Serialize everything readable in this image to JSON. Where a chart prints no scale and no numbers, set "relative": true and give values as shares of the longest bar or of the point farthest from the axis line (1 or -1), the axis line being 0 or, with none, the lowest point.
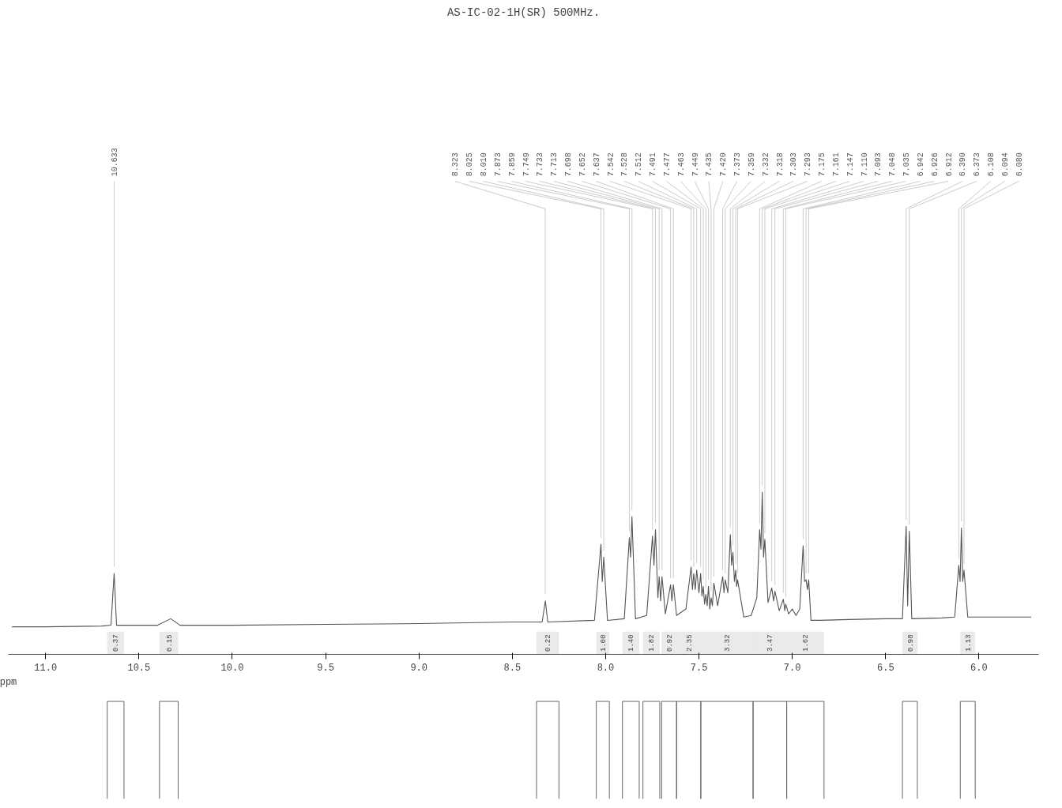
{
  "chart_data": {
    "type": "line",
    "relative": true,
    "title": "AS-IC-02-1H(SR) 500MHz.",
    "xlabel": "ppm",
    "xlim": [
      11.2,
      5.68
    ],
    "xticks": [
      {
        "value": 11,
        "label": "11.0"
      },
      {
        "value": 10.5,
        "label": "10.5"
      },
      {
        "value": 10,
        "label": "10.0"
      },
      {
        "value": 9.5,
        "label": "9.5"
      },
      {
        "value": 9,
        "label": "9.0"
      },
      {
        "value": 8.5,
        "label": "8.5"
      },
      {
        "value": 8,
        "label": "8.0"
      },
      {
        "value": 7.5,
        "label": "7.5"
      },
      {
        "value": 7,
        "label": "7.0"
      },
      {
        "value": 6.5,
        "label": "6.5"
      },
      {
        "value": 6,
        "label": "6.0"
      }
    ],
    "tick_labels": "x",
    "grid": false,
    "bands": [
      {
        "axis": "x",
        "from": 10.67,
        "to": 10.58,
        "label": "0.37"
      },
      {
        "axis": "x",
        "from": 10.39,
        "to": 10.29,
        "label": "0.15"
      },
      {
        "axis": "x",
        "from": 8.37,
        "to": 8.25,
        "label": "0.22"
      },
      {
        "axis": "x",
        "from": 8.05,
        "to": 7.98,
        "label": "1.00"
      },
      {
        "axis": "x",
        "from": 7.91,
        "to": 7.82,
        "label": "1.40"
      },
      {
        "axis": "x",
        "from": 7.8,
        "to": 7.71,
        "label": "1.82"
      },
      {
        "axis": "x",
        "from": 7.7,
        "to": 7.62,
        "label": "0.92"
      },
      {
        "axis": "x",
        "from": 7.62,
        "to": 7.49,
        "label": "2.35"
      },
      {
        "axis": "x",
        "from": 7.49,
        "to": 7.21,
        "label": "3.32"
      },
      {
        "axis": "x",
        "from": 7.21,
        "to": 7.03,
        "label": "3.47"
      },
      {
        "axis": "x",
        "from": 7.03,
        "to": 6.83,
        "label": "1.62"
      },
      {
        "axis": "x",
        "from": 6.41,
        "to": 6.33,
        "label": "0.98"
      },
      {
        "axis": "x",
        "from": 6.1,
        "to": 6.02,
        "label": "1.13"
      }
    ],
    "series": [
      {
        "color": "#555555",
        "x": [
          11.18,
          11.0,
          10.7,
          10.65,
          10.633,
          10.62,
          10.4,
          10.33,
          10.28,
          10.0,
          9.5,
          9.0,
          8.5,
          8.34,
          8.323,
          8.31,
          8.06,
          8.025,
          8.018,
          8.01,
          7.99,
          7.9,
          7.873,
          7.866,
          7.859,
          7.84,
          7.78,
          7.749,
          7.741,
          7.733,
          7.72,
          7.713,
          7.705,
          7.698,
          7.68,
          7.652,
          7.645,
          7.637,
          7.62,
          7.57,
          7.542,
          7.535,
          7.528,
          7.52,
          7.512,
          7.5,
          7.491,
          7.484,
          7.477,
          7.47,
          7.463,
          7.456,
          7.449,
          7.442,
          7.435,
          7.428,
          7.42,
          7.4,
          7.373,
          7.366,
          7.359,
          7.345,
          7.332,
          7.325,
          7.318,
          7.31,
          7.303,
          7.298,
          7.293,
          7.26,
          7.22,
          7.19,
          7.175,
          7.168,
          7.161,
          7.154,
          7.147,
          7.13,
          7.11,
          7.1,
          7.093,
          7.07,
          7.048,
          7.04,
          7.035,
          7.02,
          7.0,
          6.98,
          6.96,
          6.942,
          6.934,
          6.926,
          6.919,
          6.912,
          6.9,
          6.85,
          6.7,
          6.5,
          6.41,
          6.39,
          6.382,
          6.373,
          6.36,
          6.2,
          6.13,
          6.108,
          6.101,
          6.094,
          6.087,
          6.08,
          6.06,
          5.9,
          5.72
        ],
        "values": [
          0.17,
          0.17,
          0.175,
          0.18,
          0.5,
          0.18,
          0.18,
          0.22,
          0.18,
          0.18,
          0.185,
          0.19,
          0.2,
          0.2,
          0.33,
          0.2,
          0.21,
          0.68,
          0.45,
          0.6,
          0.21,
          0.22,
          0.72,
          0.6,
          0.85,
          0.22,
          0.24,
          0.73,
          0.55,
          0.77,
          0.35,
          0.48,
          0.33,
          0.48,
          0.25,
          0.43,
          0.33,
          0.43,
          0.24,
          0.28,
          0.54,
          0.4,
          0.5,
          0.4,
          0.52,
          0.38,
          0.5,
          0.36,
          0.42,
          0.31,
          0.37,
          0.3,
          0.42,
          0.28,
          0.35,
          0.3,
          0.44,
          0.3,
          0.48,
          0.38,
          0.46,
          0.38,
          0.74,
          0.55,
          0.63,
          0.45,
          0.52,
          0.42,
          0.46,
          0.23,
          0.24,
          0.35,
          0.77,
          0.65,
          1.0,
          0.6,
          0.71,
          0.32,
          0.41,
          0.33,
          0.39,
          0.27,
          0.34,
          0.27,
          0.31,
          0.25,
          0.28,
          0.24,
          0.28,
          0.67,
          0.45,
          0.46,
          0.4,
          0.46,
          0.21,
          0.21,
          0.215,
          0.22,
          0.22,
          0.79,
          0.3,
          0.76,
          0.22,
          0.225,
          0.23,
          0.55,
          0.45,
          0.78,
          0.45,
          0.52,
          0.23,
          0.23,
          0.23
        ]
      }
    ],
    "annotations": [
      {
        "text": "10.633",
        "x": 10.633,
        "y": 0.5
      },
      {
        "text": "8.323",
        "x": 8.323,
        "y": 0.33
      },
      {
        "text": "8.025",
        "x": 8.025,
        "y": 0.68
      },
      {
        "text": "8.010",
        "x": 8.01,
        "y": 0.6
      },
      {
        "text": "7.873",
        "x": 7.873,
        "y": 0.72
      },
      {
        "text": "7.859",
        "x": 7.859,
        "y": 0.85
      },
      {
        "text": "7.749",
        "x": 7.749,
        "y": 0.73
      },
      {
        "text": "7.733",
        "x": 7.733,
        "y": 0.77
      },
      {
        "text": "7.713",
        "x": 7.713,
        "y": 0.48
      },
      {
        "text": "7.698",
        "x": 7.698,
        "y": 0.48
      },
      {
        "text": "7.652",
        "x": 7.652,
        "y": 0.43
      },
      {
        "text": "7.637",
        "x": 7.637,
        "y": 0.43
      },
      {
        "text": "7.542",
        "x": 7.542,
        "y": 0.54
      },
      {
        "text": "7.528",
        "x": 7.528,
        "y": 0.5
      },
      {
        "text": "7.512",
        "x": 7.512,
        "y": 0.52
      },
      {
        "text": "7.491",
        "x": 7.491,
        "y": 0.5
      },
      {
        "text": "7.477",
        "x": 7.477,
        "y": 0.42
      },
      {
        "text": "7.463",
        "x": 7.463,
        "y": 0.37
      },
      {
        "text": "7.449",
        "x": 7.449,
        "y": 0.42
      },
      {
        "text": "7.435",
        "x": 7.435,
        "y": 0.35
      },
      {
        "text": "7.420",
        "x": 7.42,
        "y": 0.44
      },
      {
        "text": "7.373",
        "x": 7.373,
        "y": 0.48
      },
      {
        "text": "7.359",
        "x": 7.359,
        "y": 0.46
      },
      {
        "text": "7.332",
        "x": 7.332,
        "y": 0.74
      },
      {
        "text": "7.318",
        "x": 7.318,
        "y": 0.63
      },
      {
        "text": "7.303",
        "x": 7.303,
        "y": 0.52
      },
      {
        "text": "7.293",
        "x": 7.293,
        "y": 0.46
      },
      {
        "text": "7.175",
        "x": 7.175,
        "y": 0.77
      },
      {
        "text": "7.161",
        "x": 7.161,
        "y": 1.0
      },
      {
        "text": "7.147",
        "x": 7.147,
        "y": 0.71
      },
      {
        "text": "7.110",
        "x": 7.11,
        "y": 0.41
      },
      {
        "text": "7.093",
        "x": 7.093,
        "y": 0.39
      },
      {
        "text": "7.048",
        "x": 7.048,
        "y": 0.34
      },
      {
        "text": "7.035",
        "x": 7.035,
        "y": 0.31
      },
      {
        "text": "6.942",
        "x": 6.942,
        "y": 0.67
      },
      {
        "text": "6.926",
        "x": 6.926,
        "y": 0.46
      },
      {
        "text": "6.912",
        "x": 6.912,
        "y": 0.46
      },
      {
        "text": "6.390",
        "x": 6.39,
        "y": 0.79
      },
      {
        "text": "6.373",
        "x": 6.373,
        "y": 0.76
      },
      {
        "text": "6.108",
        "x": 6.108,
        "y": 0.55
      },
      {
        "text": "6.094",
        "x": 6.094,
        "y": 0.78
      },
      {
        "text": "6.080",
        "x": 6.08,
        "y": 0.52
      }
    ]
  }
}
